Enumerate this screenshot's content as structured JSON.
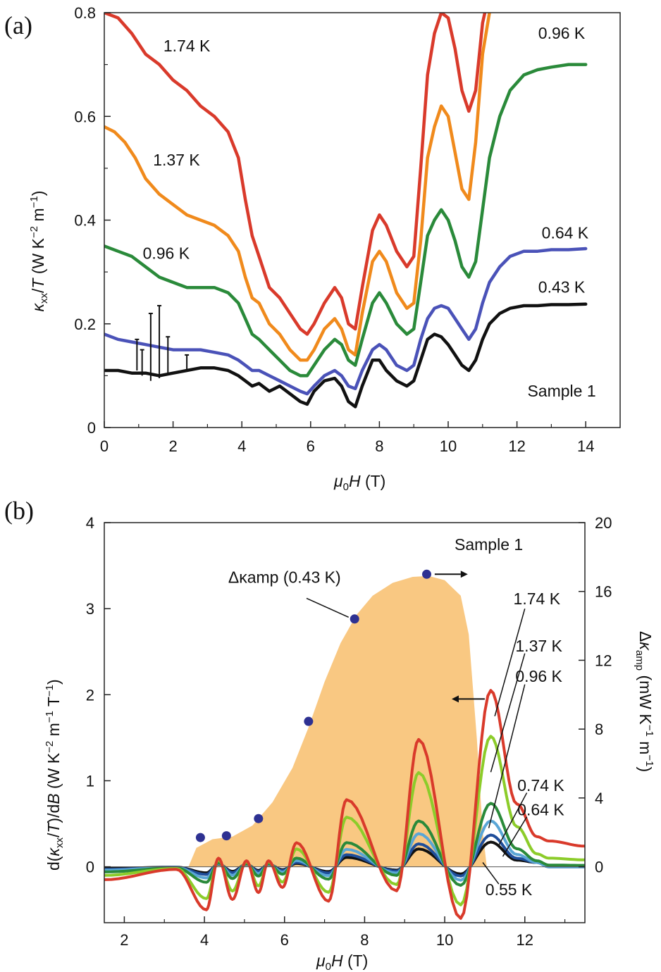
{
  "chart_data": [
    {
      "panel": "a",
      "panel_label": "(a)",
      "type": "line",
      "xlabel": "μ0H (T)",
      "ylabel": "κxx/T (W K−2 m−1)",
      "xlim": [
        0,
        15
      ],
      "ylim": [
        0,
        0.8
      ],
      "xticks": [
        0,
        2,
        4,
        6,
        8,
        10,
        12,
        14
      ],
      "yticks": [
        0,
        0.2,
        0.4,
        0.6,
        0.8
      ],
      "xtick_labels": [
        "0",
        "2",
        "4",
        "6",
        "8",
        "10",
        "12",
        "14"
      ],
      "ytick_labels": [
        "0",
        "0.2",
        "0.4",
        "0.6",
        "0.8"
      ],
      "annotation": "Sample 1",
      "series": [
        {
          "name": "1.74 K",
          "color": "#d93a2b",
          "x": [
            0,
            0.4,
            0.8,
            1.2,
            1.6,
            2.0,
            2.4,
            2.8,
            3.2,
            3.6,
            3.9,
            4.1,
            4.3,
            4.5,
            4.8,
            5.1,
            5.4,
            5.7,
            5.9,
            6.1,
            6.4,
            6.7,
            6.9,
            7.1,
            7.3,
            7.5,
            7.8,
            8.0,
            8.2,
            8.5,
            8.8,
            9.0,
            9.2,
            9.4,
            9.6,
            9.8,
            10.0,
            10.2,
            10.4,
            10.6,
            10.8,
            11.0,
            11.1
          ],
          "y": [
            0.8,
            0.79,
            0.76,
            0.72,
            0.7,
            0.67,
            0.65,
            0.62,
            0.6,
            0.57,
            0.52,
            0.44,
            0.37,
            0.33,
            0.27,
            0.25,
            0.22,
            0.19,
            0.18,
            0.2,
            0.24,
            0.27,
            0.25,
            0.2,
            0.19,
            0.27,
            0.38,
            0.41,
            0.39,
            0.34,
            0.31,
            0.33,
            0.5,
            0.68,
            0.76,
            0.8,
            0.79,
            0.73,
            0.65,
            0.61,
            0.65,
            0.78,
            0.81
          ]
        },
        {
          "name": "1.37 K",
          "color": "#f08a1c",
          "x": [
            0,
            0.3,
            0.6,
            0.9,
            1.2,
            1.6,
            2.0,
            2.4,
            2.8,
            3.2,
            3.6,
            3.9,
            4.1,
            4.3,
            4.5,
            4.8,
            5.1,
            5.4,
            5.7,
            5.9,
            6.1,
            6.4,
            6.7,
            6.9,
            7.1,
            7.3,
            7.5,
            7.8,
            8.0,
            8.2,
            8.5,
            8.8,
            9.0,
            9.2,
            9.4,
            9.6,
            9.8,
            10.0,
            10.2,
            10.4,
            10.6,
            10.8,
            11.0,
            11.2
          ],
          "y": [
            0.58,
            0.57,
            0.55,
            0.52,
            0.48,
            0.45,
            0.43,
            0.41,
            0.4,
            0.39,
            0.37,
            0.34,
            0.29,
            0.25,
            0.24,
            0.2,
            0.18,
            0.15,
            0.13,
            0.13,
            0.15,
            0.19,
            0.21,
            0.19,
            0.15,
            0.14,
            0.22,
            0.32,
            0.34,
            0.32,
            0.26,
            0.23,
            0.24,
            0.36,
            0.52,
            0.58,
            0.62,
            0.6,
            0.53,
            0.46,
            0.44,
            0.55,
            0.72,
            0.8
          ]
        },
        {
          "name": "0.96 K",
          "color": "#2a8a3a",
          "x": [
            0,
            0.4,
            0.8,
            1.2,
            1.6,
            2.0,
            2.4,
            2.8,
            3.2,
            3.6,
            3.9,
            4.1,
            4.3,
            4.5,
            4.8,
            5.1,
            5.4,
            5.7,
            5.9,
            6.1,
            6.4,
            6.7,
            6.9,
            7.1,
            7.3,
            7.5,
            7.8,
            8.0,
            8.2,
            8.5,
            8.8,
            9.0,
            9.2,
            9.4,
            9.6,
            9.8,
            10.0,
            10.2,
            10.4,
            10.6,
            10.8,
            11.0,
            11.2,
            11.5,
            11.8,
            12.2,
            12.6,
            13.0,
            13.5,
            14.0
          ],
          "y": [
            0.35,
            0.34,
            0.33,
            0.31,
            0.29,
            0.28,
            0.27,
            0.27,
            0.27,
            0.26,
            0.24,
            0.21,
            0.18,
            0.17,
            0.15,
            0.13,
            0.11,
            0.1,
            0.1,
            0.12,
            0.15,
            0.17,
            0.16,
            0.13,
            0.12,
            0.17,
            0.24,
            0.26,
            0.24,
            0.2,
            0.18,
            0.19,
            0.28,
            0.37,
            0.4,
            0.42,
            0.4,
            0.36,
            0.31,
            0.29,
            0.32,
            0.42,
            0.52,
            0.6,
            0.65,
            0.68,
            0.69,
            0.695,
            0.7,
            0.7
          ]
        },
        {
          "name": "0.64 K",
          "color": "#4a52b8",
          "x": [
            0,
            0.4,
            0.8,
            1.2,
            1.6,
            2.0,
            2.4,
            2.8,
            3.2,
            3.6,
            3.9,
            4.1,
            4.3,
            4.5,
            4.8,
            5.1,
            5.4,
            5.7,
            5.9,
            6.1,
            6.4,
            6.7,
            6.9,
            7.1,
            7.3,
            7.5,
            7.8,
            8.0,
            8.2,
            8.5,
            8.8,
            9.0,
            9.2,
            9.4,
            9.6,
            9.8,
            10.0,
            10.2,
            10.4,
            10.6,
            10.8,
            11.0,
            11.2,
            11.5,
            11.8,
            12.2,
            12.6,
            13.0,
            13.5,
            14.0
          ],
          "y": [
            0.18,
            0.17,
            0.165,
            0.16,
            0.155,
            0.15,
            0.15,
            0.15,
            0.145,
            0.14,
            0.13,
            0.12,
            0.11,
            0.11,
            0.1,
            0.09,
            0.08,
            0.07,
            0.065,
            0.08,
            0.1,
            0.11,
            0.1,
            0.08,
            0.075,
            0.11,
            0.15,
            0.16,
            0.15,
            0.12,
            0.11,
            0.12,
            0.17,
            0.21,
            0.23,
            0.235,
            0.23,
            0.21,
            0.19,
            0.17,
            0.19,
            0.24,
            0.28,
            0.31,
            0.33,
            0.34,
            0.34,
            0.343,
            0.343,
            0.345
          ]
        },
        {
          "name": "0.43 K",
          "color": "#111111",
          "x": [
            0,
            0.4,
            0.8,
            1.2,
            1.6,
            2.0,
            2.4,
            2.8,
            3.2,
            3.6,
            3.9,
            4.1,
            4.3,
            4.5,
            4.8,
            5.1,
            5.4,
            5.7,
            5.9,
            6.1,
            6.4,
            6.7,
            6.9,
            7.1,
            7.3,
            7.5,
            7.8,
            8.0,
            8.2,
            8.5,
            8.8,
            9.0,
            9.2,
            9.4,
            9.6,
            9.8,
            10.0,
            10.2,
            10.4,
            10.6,
            10.8,
            11.0,
            11.2,
            11.5,
            11.8,
            12.2,
            12.6,
            13.0,
            13.5,
            14.0
          ],
          "y": [
            0.11,
            0.11,
            0.105,
            0.105,
            0.1,
            0.105,
            0.11,
            0.115,
            0.115,
            0.11,
            0.1,
            0.09,
            0.08,
            0.085,
            0.07,
            0.08,
            0.065,
            0.05,
            0.045,
            0.07,
            0.09,
            0.095,
            0.08,
            0.05,
            0.04,
            0.08,
            0.13,
            0.13,
            0.11,
            0.09,
            0.08,
            0.09,
            0.13,
            0.17,
            0.18,
            0.175,
            0.16,
            0.14,
            0.12,
            0.11,
            0.13,
            0.17,
            0.2,
            0.22,
            0.23,
            0.235,
            0.235,
            0.237,
            0.237,
            0.238
          ]
        }
      ],
      "error_bars": {
        "color": "#111111",
        "x": [
          0.95,
          1.1,
          1.35,
          1.6,
          1.85,
          2.4
        ],
        "low": [
          0.11,
          0.1,
          0.09,
          0.095,
          0.105,
          0.11
        ],
        "high": [
          0.17,
          0.15,
          0.22,
          0.235,
          0.175,
          0.14
        ]
      },
      "labels": [
        {
          "text": "1.74 K",
          "x": 2.4,
          "y": 0.725
        },
        {
          "text": "1.37 K",
          "x": 2.1,
          "y": 0.505
        },
        {
          "text": "0.96 K",
          "x": 1.8,
          "y": 0.325
        },
        {
          "text": "0.96 K",
          "x": 13.3,
          "y": 0.75
        },
        {
          "text": "0.64 K",
          "x": 13.4,
          "y": 0.365
        },
        {
          "text": "0.43 K",
          "x": 13.3,
          "y": 0.26
        },
        {
          "text": "Sample 1",
          "x": 13.3,
          "y": 0.06
        }
      ]
    },
    {
      "panel": "b",
      "panel_label": "(b)",
      "type": "line",
      "xlabel": "μ0H (T)",
      "ylabel": "d(κxx/T)/dB (W K−2 m−1 T−1)",
      "y2label": "Δκamp (mW K−1 m−1)",
      "xlim": [
        1.5,
        13.5
      ],
      "ylim": [
        -0.65,
        4.0
      ],
      "y2lim": [
        -3.25,
        20
      ],
      "xticks": [
        2,
        4,
        6,
        8,
        10,
        12
      ],
      "yticks": [
        0,
        1,
        2,
        3,
        4
      ],
      "y2ticks": [
        0,
        4,
        8,
        12,
        16,
        20
      ],
      "xtick_labels": [
        "2",
        "4",
        "6",
        "8",
        "10",
        "12"
      ],
      "ytick_labels": [
        "0",
        "1",
        "2",
        "3",
        "4"
      ],
      "y2tick_labels": [
        "0",
        "4",
        "8",
        "12",
        "16",
        "20"
      ],
      "annotation": "Sample 1",
      "amp_label": "Δκamp (0.43 K)",
      "envelope": {
        "color": "#f9c882",
        "x": [
          3.6,
          3.8,
          4.2,
          4.7,
          5.2,
          5.7,
          6.2,
          6.6,
          7.0,
          7.4,
          7.8,
          8.2,
          8.7,
          9.2,
          9.6,
          10.0,
          10.4,
          10.6,
          10.8,
          10.95,
          11.05
        ],
        "y": [
          0.0,
          0.22,
          0.32,
          0.35,
          0.48,
          0.75,
          1.15,
          1.62,
          2.15,
          2.6,
          2.93,
          3.15,
          3.3,
          3.37,
          3.38,
          3.33,
          3.15,
          2.7,
          1.5,
          0.4,
          0.0
        ]
      },
      "amp_points": {
        "color": "#2e3192",
        "x": [
          3.9,
          4.55,
          5.35,
          6.6,
          7.75,
          9.55
        ],
        "y2": [
          1.7,
          1.8,
          2.8,
          8.45,
          14.4,
          17.0
        ]
      },
      "series": [
        {
          "name": "1.74 K",
          "color": "#d93a2b",
          "amp": 1.0,
          "tail": 0.3,
          "base": -0.15
        },
        {
          "name": "1.37 K",
          "color": "#8ccc2a",
          "amp": 0.74,
          "tail": 0.1,
          "base": -0.1
        },
        {
          "name": "0.96 K",
          "color": "#2a8a3a",
          "amp": 0.36,
          "tail": 0.02,
          "base": -0.06
        },
        {
          "name": "0.74 K",
          "color": "#5aa6d6",
          "amp": 0.26,
          "tail": 0.0,
          "base": -0.04
        },
        {
          "name": "0.64 K",
          "color": "#1f4e9a",
          "amp": 0.18,
          "tail": 0.0,
          "base": -0.03
        },
        {
          "name": "0.55 K",
          "color": "#111111",
          "amp": 0.14,
          "tail": 0.0,
          "base": -0.02
        }
      ],
      "peak_fields": [
        4.35,
        5.05,
        5.6,
        6.3,
        7.55,
        9.35,
        11.15
      ],
      "dip_fields": [
        4.05,
        4.7,
        5.35,
        5.95,
        7.1,
        8.8,
        10.4
      ],
      "labels": [
        {
          "text": "1.74 K",
          "x": 12.3,
          "y": 3.05
        },
        {
          "text": "1.37 K",
          "x": 12.35,
          "y": 2.5
        },
        {
          "text": "0.96 K",
          "x": 12.35,
          "y": 2.15
        },
        {
          "text": "0.74 K",
          "x": 12.4,
          "y": 0.88
        },
        {
          "text": "0.64 K",
          "x": 12.4,
          "y": 0.6
        },
        {
          "text": "0.55 K",
          "x": 11.6,
          "y": -0.33
        },
        {
          "text": "Sample 1",
          "x": 11.1,
          "y": 3.68
        },
        {
          "text": "Δκamp (0.43 K)",
          "x": 6.0,
          "y": 3.3
        }
      ]
    }
  ]
}
